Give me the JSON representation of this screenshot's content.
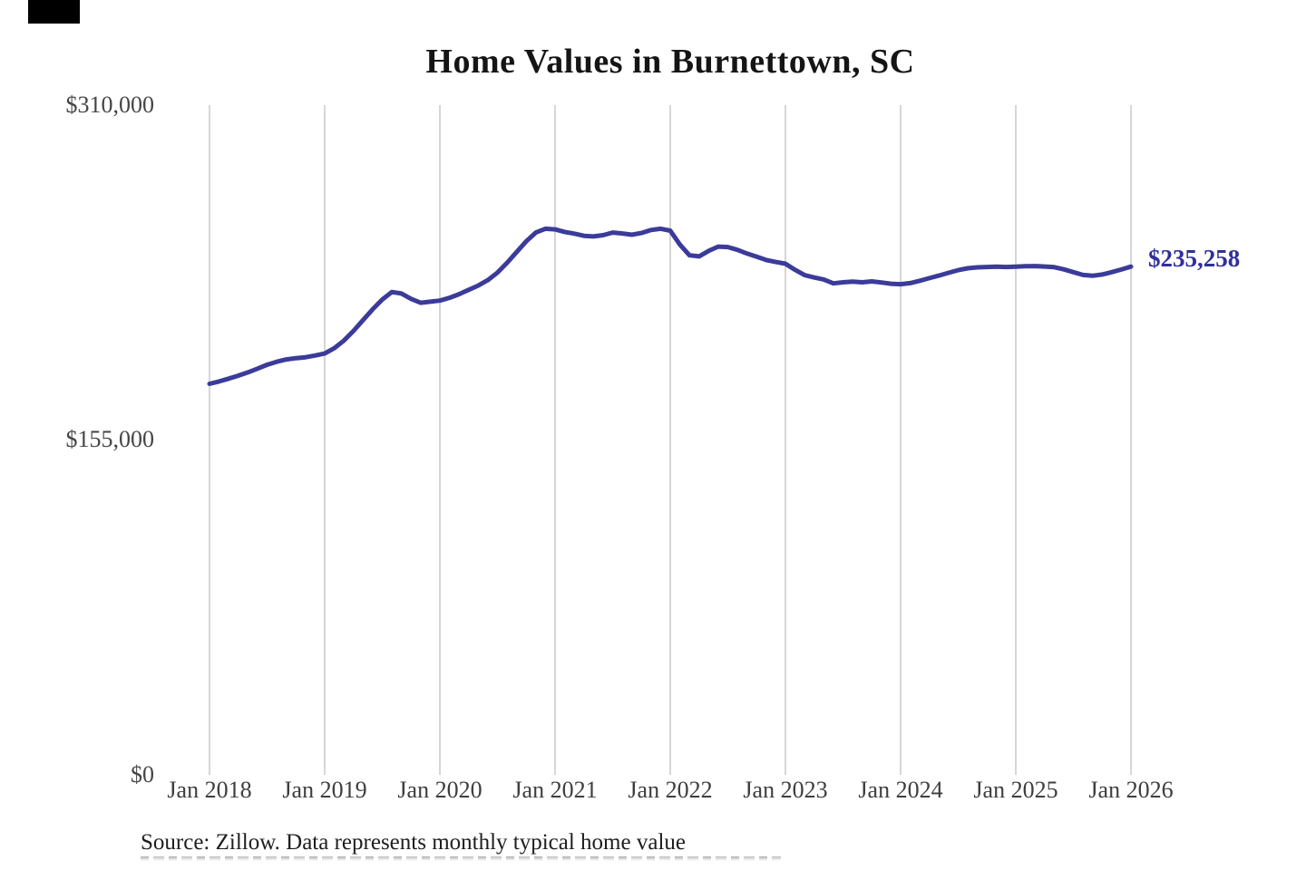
{
  "title": "Home Values in Burnettown, SC",
  "chart_data": {
    "type": "line",
    "title": "Home Values in Burnettown, SC",
    "series_name": "Monthly typical home value",
    "x": {
      "start": "2018-01",
      "step_months": 1,
      "count": 97
    },
    "x_tick_labels": [
      "Jan 2018",
      "Jan 2019",
      "Jan 2020",
      "Jan 2021",
      "Jan 2022",
      "Jan 2023",
      "Jan 2024",
      "Jan 2025",
      "Jan 2026"
    ],
    "y_tick_labels": [
      "$310,000",
      "$155,000",
      "$0"
    ],
    "y_ticks": [
      310000,
      155000,
      0
    ],
    "ylim": [
      0,
      310000
    ],
    "grid": "vertical-only",
    "legend": "none",
    "line_color": "#3b3b9b",
    "gridline_color": "#cccccc",
    "end_label": "$235,258",
    "end_value": 235258,
    "values": [
      181000,
      182100,
      183400,
      184800,
      186300,
      188000,
      189800,
      191200,
      192300,
      192900,
      193300,
      194100,
      195000,
      197500,
      201000,
      205500,
      210500,
      215500,
      220000,
      223500,
      222800,
      220300,
      218500,
      219000,
      219500,
      220800,
      222500,
      224500,
      226500,
      229000,
      232500,
      237000,
      242000,
      247000,
      251000,
      252800,
      252500,
      251300,
      250500,
      249500,
      249200,
      249800,
      251000,
      250600,
      250000,
      250800,
      252200,
      252800,
      251900,
      245500,
      240500,
      240000,
      242500,
      244500,
      244300,
      243000,
      241300,
      239800,
      238300,
      237400,
      236600,
      233800,
      231300,
      230200,
      229300,
      227500,
      228000,
      228300,
      228000,
      228400,
      227900,
      227300,
      227100,
      227600,
      228700,
      229900,
      231100,
      232400,
      233600,
      234500,
      234900,
      235100,
      235200,
      235100,
      235200,
      235400,
      235500,
      235300,
      235000,
      234000,
      232700,
      231400,
      231000,
      231600,
      232700,
      233900,
      235258
    ]
  },
  "footer": {
    "source": "Source: Zillow. Data represents monthly typical home value"
  },
  "colors": {
    "title": "#151515",
    "axis_label": "#454545",
    "line": "#3b3b9b",
    "gridline": "#cccccc",
    "end_label": "#30309a",
    "source": "#1e1e1e",
    "corner_box": "#000000"
  }
}
